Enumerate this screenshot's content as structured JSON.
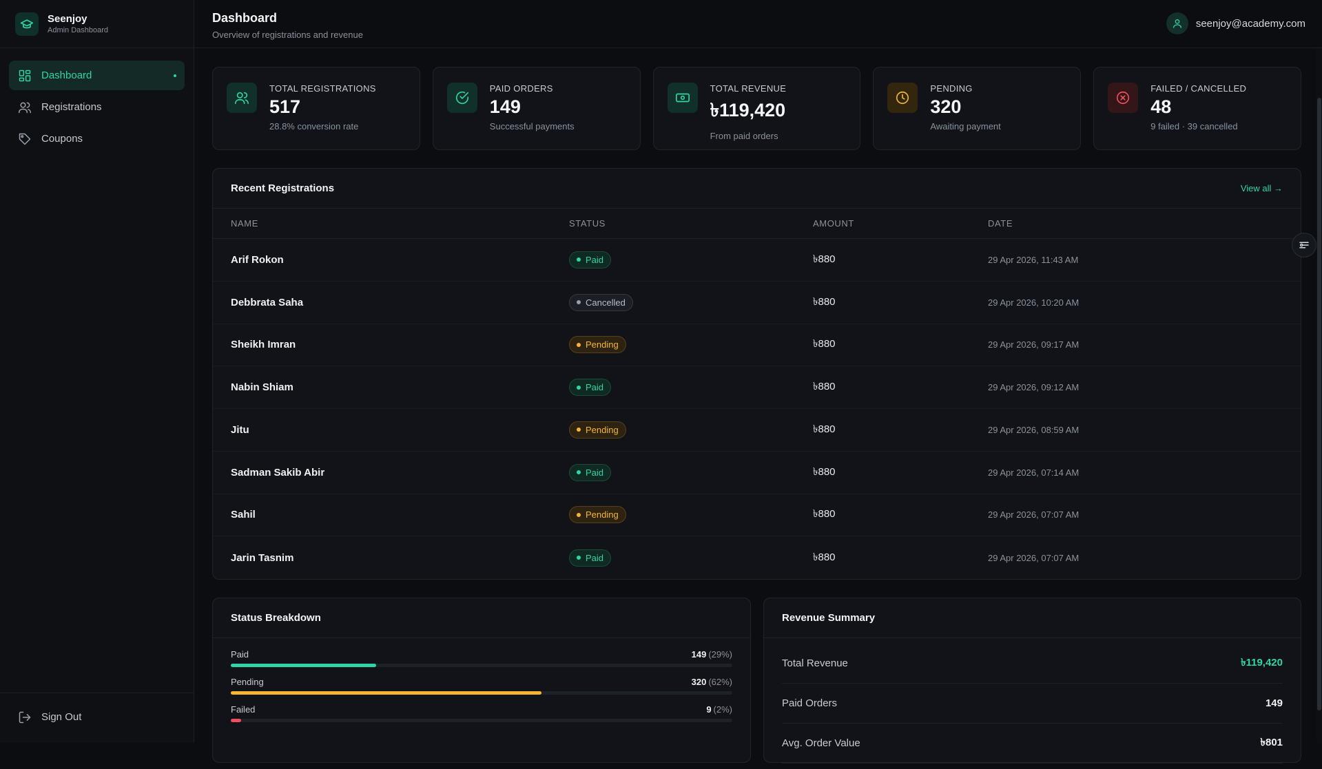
{
  "brand": {
    "name": "Seenjoy",
    "subtitle": "Admin Dashboard"
  },
  "sidebar": {
    "items": [
      {
        "label": "Dashboard",
        "icon": "grid-icon",
        "active": true
      },
      {
        "label": "Registrations",
        "icon": "users-icon"
      },
      {
        "label": "Coupons",
        "icon": "tag-icon"
      }
    ],
    "sign_out": "Sign Out"
  },
  "header": {
    "title": "Dashboard",
    "subtitle": "Overview of registrations and revenue",
    "user_email": "seenjoy@academy.com"
  },
  "stats": [
    {
      "label": "TOTAL REGISTRATIONS",
      "value": "517",
      "note": "28.8% conversion rate",
      "icon": "users-icon",
      "color": "#2fd4a8"
    },
    {
      "label": "PAID ORDERS",
      "value": "149",
      "note": "Successful payments",
      "icon": "check-circle-icon",
      "color": "#2fd4a8"
    },
    {
      "label": "TOTAL REVENUE",
      "value": "৳119,420",
      "note": "From paid orders",
      "icon": "banknote-icon",
      "color": "#2fd4a8"
    },
    {
      "label": "PENDING",
      "value": "320",
      "note": "Awaiting payment",
      "icon": "clock-icon",
      "color": "#f5b731"
    },
    {
      "label": "FAILED / CANCELLED",
      "value": "48",
      "note": "9 failed · 39 cancelled",
      "icon": "x-circle-icon",
      "color": "#ef4f5a"
    }
  ],
  "recent": {
    "title": "Recent Registrations",
    "view_all": "View all →",
    "columns": [
      "NAME",
      "STATUS",
      "AMOUNT",
      "DATE"
    ],
    "rows": [
      {
        "name": "Arif Rokon",
        "status": "Paid",
        "amount": "৳880",
        "date": "29 Apr 2026, 11:43 AM"
      },
      {
        "name": "Debbrata Saha",
        "status": "Cancelled",
        "amount": "৳880",
        "date": "29 Apr 2026, 10:20 AM"
      },
      {
        "name": "Sheikh Imran",
        "status": "Pending",
        "amount": "৳880",
        "date": "29 Apr 2026, 09:17 AM"
      },
      {
        "name": "Nabin Shiam",
        "status": "Paid",
        "amount": "৳880",
        "date": "29 Apr 2026, 09:12 AM"
      },
      {
        "name": "Jitu",
        "status": "Pending",
        "amount": "৳880",
        "date": "29 Apr 2026, 08:59 AM"
      },
      {
        "name": "Sadman Sakib Abir",
        "status": "Paid",
        "amount": "৳880",
        "date": "29 Apr 2026, 07:14 AM"
      },
      {
        "name": "Sahil",
        "status": "Pending",
        "amount": "৳880",
        "date": "29 Apr 2026, 07:07 AM"
      },
      {
        "name": "Jarin Tasnim",
        "status": "Paid",
        "amount": "৳880",
        "date": "29 Apr 2026, 07:07 AM"
      }
    ]
  },
  "breakdown": {
    "title": "Status Breakdown",
    "items": [
      {
        "label": "Paid",
        "count": "149",
        "pct": "(29%)",
        "fraction": 0.29,
        "color": "#2fd4a8"
      },
      {
        "label": "Pending",
        "count": "320",
        "pct": "(62%)",
        "fraction": 0.62,
        "color": "#f5b731"
      },
      {
        "label": "Failed",
        "count": "9",
        "pct": "(2%)",
        "fraction": 0.02,
        "color": "#ef4f5a"
      }
    ]
  },
  "revenue": {
    "title": "Revenue Summary",
    "rows": [
      {
        "label": "Total Revenue",
        "value": "৳119,420",
        "accent": true
      },
      {
        "label": "Paid Orders",
        "value": "149"
      },
      {
        "label": "Avg. Order Value",
        "value": "৳801"
      }
    ]
  }
}
